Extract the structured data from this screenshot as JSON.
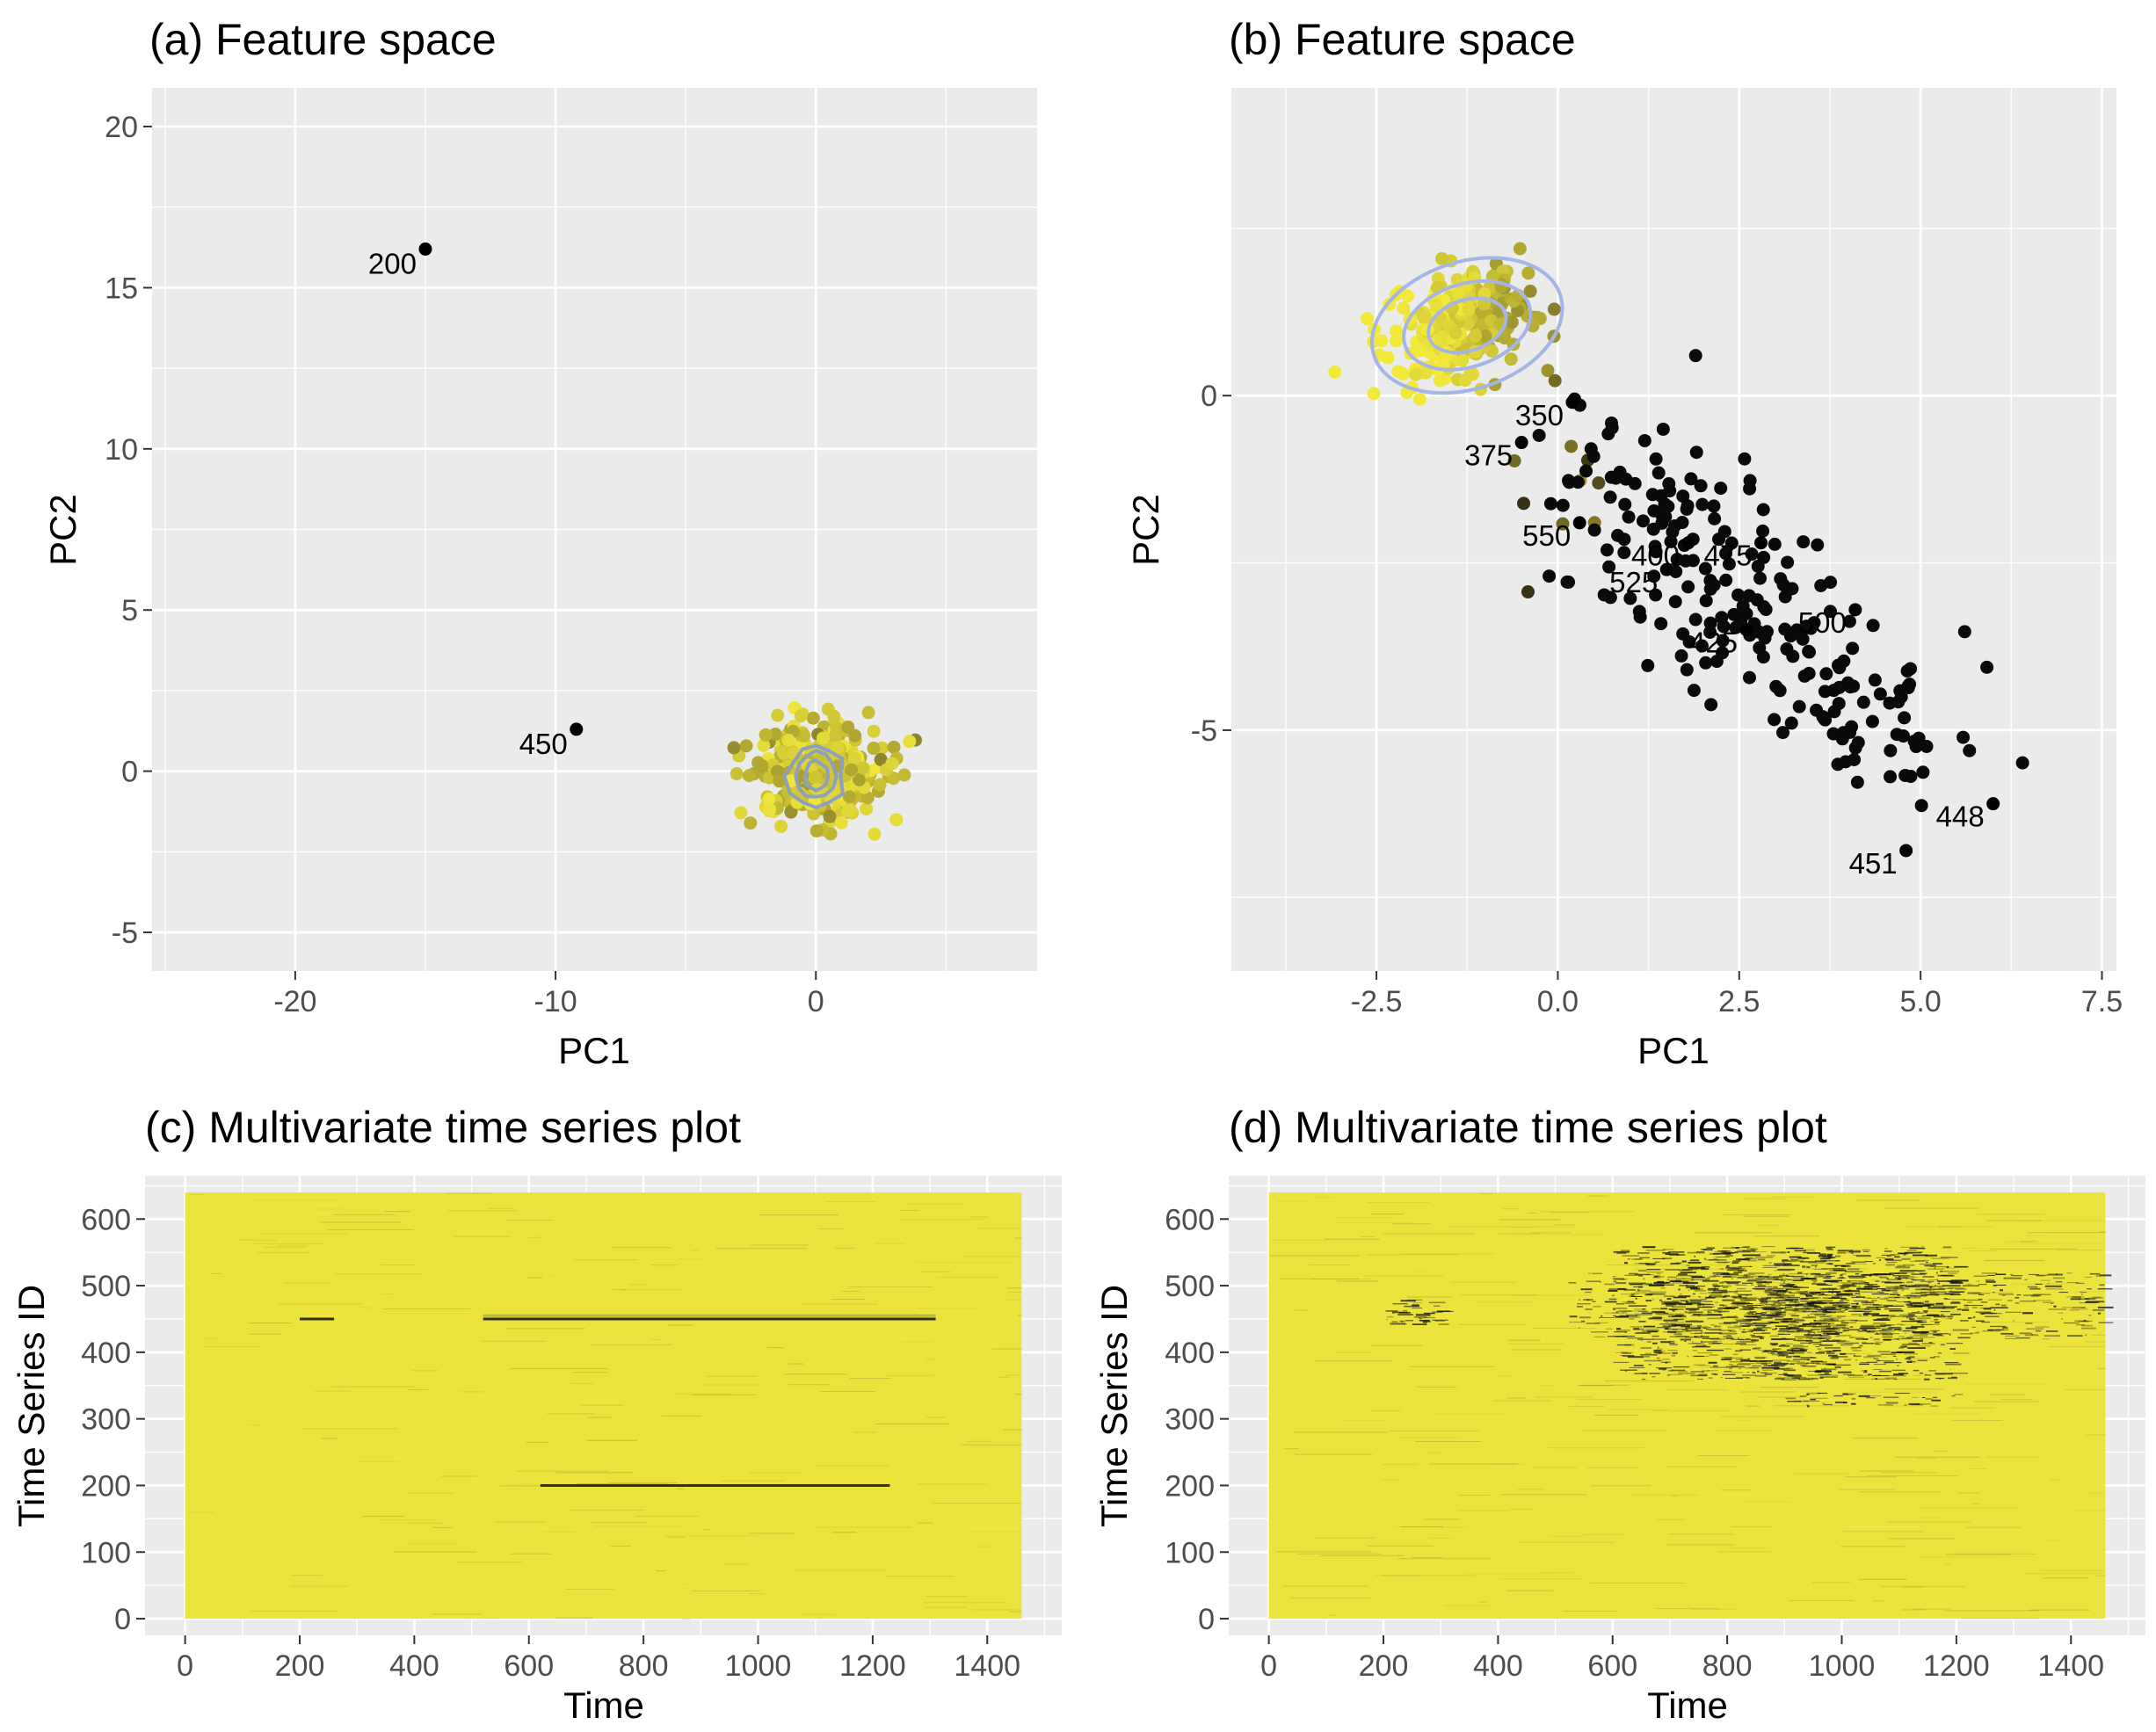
{
  "colors": {
    "panel_bg": "#ebebeb",
    "grid": "#ffffff",
    "contour": "#8ea0c0",
    "ellipse": "#a6b4e6",
    "typical_point": "#d8cc38",
    "anomalous_point": "#000000",
    "heatmap_fill": "#ece33c",
    "heatmap_dark": "#111111"
  },
  "chart_data": [
    {
      "id": "a",
      "type": "scatter",
      "title": "(a) Feature space",
      "xlabel": "PC1",
      "ylabel": "PC2",
      "xlim": [
        -25.5,
        8.5
      ],
      "ylim": [
        -6.2,
        21.2
      ],
      "xticks": [
        -20,
        -10,
        0
      ],
      "yticks": [
        -5,
        0,
        5,
        10,
        15,
        20
      ],
      "grid": true,
      "cluster": {
        "center": [
          0,
          0
        ],
        "spread": [
          1.3,
          0.75
        ],
        "n": 330,
        "dark_fraction": 0.15
      },
      "outliers": [
        {
          "x": -15.0,
          "y": 16.2,
          "label": "200"
        },
        {
          "x": -9.2,
          "y": 1.3,
          "label": "450"
        }
      ]
    },
    {
      "id": "b",
      "type": "scatter",
      "title": "(b) Feature space",
      "xlabel": "PC1",
      "ylabel": "PC2",
      "xlim": [
        -4.5,
        7.7
      ],
      "ylim": [
        -8.6,
        4.6
      ],
      "xticks": [
        -2.5,
        0.0,
        2.5,
        5.0,
        7.5
      ],
      "xticklabels": [
        "-2.5",
        "0.0",
        "2.5",
        "5.0",
        "7.5"
      ],
      "yticks": [
        -5,
        0
      ],
      "grid": true,
      "cluster": {
        "center": [
          -1.3,
          1.05
        ],
        "spread": [
          0.5,
          0.42
        ],
        "n": 260
      },
      "anomalous_band": {
        "from": [
          0.2,
          -0.7
        ],
        "to": [
          4.5,
          -5.0
        ],
        "n": 240
      },
      "outliers": [
        {
          "x": 4.8,
          "y": -6.8,
          "label": "451"
        },
        {
          "x": 6.0,
          "y": -6.1,
          "label": "448"
        },
        {
          "x": 4.1,
          "y": -3.2,
          "label": "500"
        },
        {
          "x": 2.6,
          "y": -3.5,
          "label": "425"
        },
        {
          "x": 2.8,
          "y": -2.2,
          "label": "475"
        },
        {
          "x": 1.8,
          "y": -2.2,
          "label": "400"
        },
        {
          "x": 1.5,
          "y": -2.6,
          "label": "525"
        },
        {
          "x": 0.3,
          "y": -1.9,
          "label": "550"
        },
        {
          "x": -0.5,
          "y": -0.7,
          "label": "375"
        },
        {
          "x": 0.2,
          "y": -0.1,
          "label": "350"
        }
      ]
    },
    {
      "id": "c",
      "type": "heatmap",
      "title": "(c) Multivariate time series plot",
      "xlabel": "Time",
      "ylabel": "Time Series ID",
      "xlim": [
        -70,
        1530
      ],
      "ylim": [
        -25,
        665
      ],
      "xticks": [
        0,
        200,
        400,
        600,
        800,
        1000,
        1200,
        1400
      ],
      "yticks": [
        0,
        100,
        200,
        300,
        400,
        500,
        600
      ],
      "fill_extent": {
        "x": [
          0,
          1460
        ],
        "y": [
          0,
          640
        ]
      },
      "dark_lines": [
        {
          "id": 450,
          "segments": [
            [
              200,
              260
            ],
            [
              520,
              1310
            ]
          ],
          "opacity": 0.85
        },
        {
          "id": 200,
          "segments": [
            [
              620,
              1230
            ]
          ],
          "opacity": 0.85
        },
        {
          "id": 455,
          "segments": [
            [
              520,
              1310
            ]
          ],
          "opacity": 0.2
        }
      ],
      "noise_density": 0.08
    },
    {
      "id": "d",
      "type": "heatmap",
      "title": "(d) Multivariate time series plot",
      "xlabel": "Time",
      "ylabel": "Time Series ID",
      "xlim": [
        -70,
        1530
      ],
      "ylim": [
        -25,
        665
      ],
      "xticks": [
        0,
        200,
        400,
        600,
        800,
        1000,
        1200,
        1400
      ],
      "yticks": [
        0,
        100,
        200,
        300,
        400,
        500,
        600
      ],
      "fill_extent": {
        "x": [
          0,
          1460
        ],
        "y": [
          0,
          640
        ]
      },
      "dark_regions": [
        {
          "x": [
            200,
            300
          ],
          "y": [
            440,
            480
          ],
          "density": 0.55
        },
        {
          "x": [
            520,
            1450
          ],
          "y": [
            420,
            520
          ],
          "density": 0.45
        },
        {
          "x": [
            600,
            1200
          ],
          "y": [
            360,
            560
          ],
          "density": 0.6
        },
        {
          "x": [
            900,
            1200
          ],
          "y": [
            320,
            340
          ],
          "density": 0.4
        }
      ],
      "noise_density": 0.12
    }
  ]
}
